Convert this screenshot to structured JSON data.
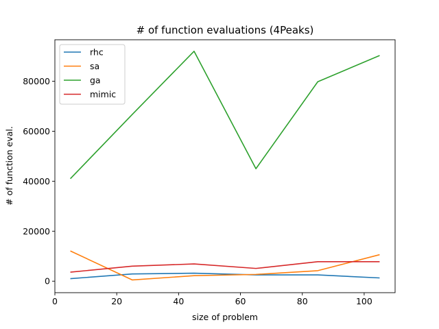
{
  "chart_data": {
    "type": "line",
    "title": "# of function evaluations (4Peaks)",
    "xlabel": "size of problem",
    "ylabel": "# of function eval.",
    "xlim": [
      0,
      110
    ],
    "ylim": [
      -4600,
      96600
    ],
    "x_ticks": [
      0,
      20,
      40,
      60,
      80,
      100
    ],
    "y_ticks": [
      0,
      20000,
      40000,
      60000,
      80000
    ],
    "grid": false,
    "legend_position": "top-left",
    "x": [
      5,
      25,
      45,
      65,
      85,
      105
    ],
    "series": [
      {
        "name": "rhc",
        "color": "#1f77b4",
        "values": [
          1000,
          2900,
          3200,
          2500,
          2500,
          1300
        ]
      },
      {
        "name": "sa",
        "color": "#ff7f0e",
        "values": [
          12100,
          500,
          2200,
          2700,
          4200,
          10600
        ]
      },
      {
        "name": "ga",
        "color": "#2ca02c",
        "values": [
          41000,
          66700,
          92000,
          45000,
          79800,
          90300
        ]
      },
      {
        "name": "mimic",
        "color": "#d62728",
        "values": [
          3600,
          6000,
          6900,
          5100,
          7800,
          7800
        ]
      }
    ]
  }
}
